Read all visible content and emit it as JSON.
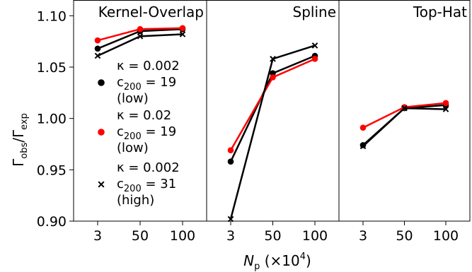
{
  "chart_data": {
    "type": "line",
    "ylabel": "Γ_obs/Γ_exp",
    "ylabel_main": "Γ",
    "ylabel_sub1": "obs",
    "ylabel_mid": "/Γ",
    "ylabel_sub2": "exp",
    "xlabel": "N_p (×10^4)",
    "xlabel_main": "N",
    "xlabel_sub": "p",
    "xlabel_rest": " (×10",
    "xlabel_sup": "4",
    "xlabel_close": ")",
    "ylim": [
      0.9,
      1.115
    ],
    "yticks": [
      "0.90",
      "0.95",
      "1.00",
      "1.05",
      "1.10"
    ],
    "ytick_values": [
      0.9,
      0.95,
      1.0,
      1.05,
      1.1
    ],
    "categories": [
      "3",
      "50",
      "100"
    ],
    "grid": false,
    "legend": {
      "placement": "left panel, lower",
      "entries": [
        {
          "marker": "dot",
          "color": "#000000",
          "line1": "κ = 0.002",
          "line2_main": "c",
          "line2_sub": "200",
          "line2_rest": " = 19",
          "line3": "(low)"
        },
        {
          "marker": "dot",
          "color": "#ff0000",
          "line1": "κ = 0.02",
          "line2_main": "c",
          "line2_sub": "200",
          "line2_rest": " = 19",
          "line3": "(low)"
        },
        {
          "marker": "x",
          "color": "#000000",
          "line1": "κ = 0.002",
          "line2_main": "c",
          "line2_sub": "200",
          "line2_rest": " = 31",
          "line3": "(high)"
        }
      ]
    },
    "panels": [
      {
        "title": "Kernel-Overlap",
        "series": [
          {
            "style": "dot",
            "color": "#000000",
            "values": [
              1.068,
              1.085,
              1.087
            ]
          },
          {
            "style": "dot",
            "color": "#ff0000",
            "values": [
              1.076,
              1.087,
              1.088
            ]
          },
          {
            "style": "x",
            "color": "#000000",
            "values": [
              1.061,
              1.08,
              1.082
            ]
          }
        ]
      },
      {
        "title": "Spline",
        "series": [
          {
            "style": "dot",
            "color": "#000000",
            "values": [
              0.958,
              1.044,
              1.061
            ]
          },
          {
            "style": "dot",
            "color": "#ff0000",
            "values": [
              0.969,
              1.04,
              1.058
            ]
          },
          {
            "style": "x",
            "color": "#000000",
            "values": [
              0.902,
              1.058,
              1.071
            ]
          }
        ]
      },
      {
        "title": "Top-Hat",
        "series": [
          {
            "style": "dot",
            "color": "#000000",
            "values": [
              0.974,
              1.01,
              1.013
            ]
          },
          {
            "style": "dot",
            "color": "#ff0000",
            "values": [
              0.991,
              1.011,
              1.015
            ]
          },
          {
            "style": "x",
            "color": "#000000",
            "values": [
              0.973,
              1.01,
              1.009
            ]
          }
        ]
      }
    ]
  }
}
